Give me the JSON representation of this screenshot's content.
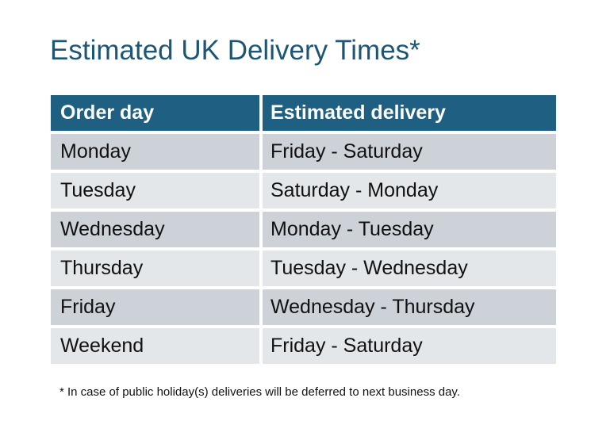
{
  "title": "Estimated UK Delivery Times*",
  "table": {
    "headers": [
      "Order day",
      "Estimated delivery"
    ],
    "rows": [
      [
        "Monday",
        "Friday - Saturday"
      ],
      [
        "Tuesday",
        "Saturday - Monday"
      ],
      [
        "Wednesday",
        "Monday - Tuesday"
      ],
      [
        "Thursday",
        "Tuesday - Wednesday"
      ],
      [
        "Friday",
        "Wednesday - Thursday"
      ],
      [
        "Weekend",
        "Friday - Saturday"
      ]
    ]
  },
  "footnote": "* In case of public holiday(s) deliveries will be deferred to next business day.",
  "colors": {
    "title": "#1d5675",
    "header": "#1f6082",
    "row_odd": "#cdd1d8",
    "row_even": "#e4e7ea"
  }
}
